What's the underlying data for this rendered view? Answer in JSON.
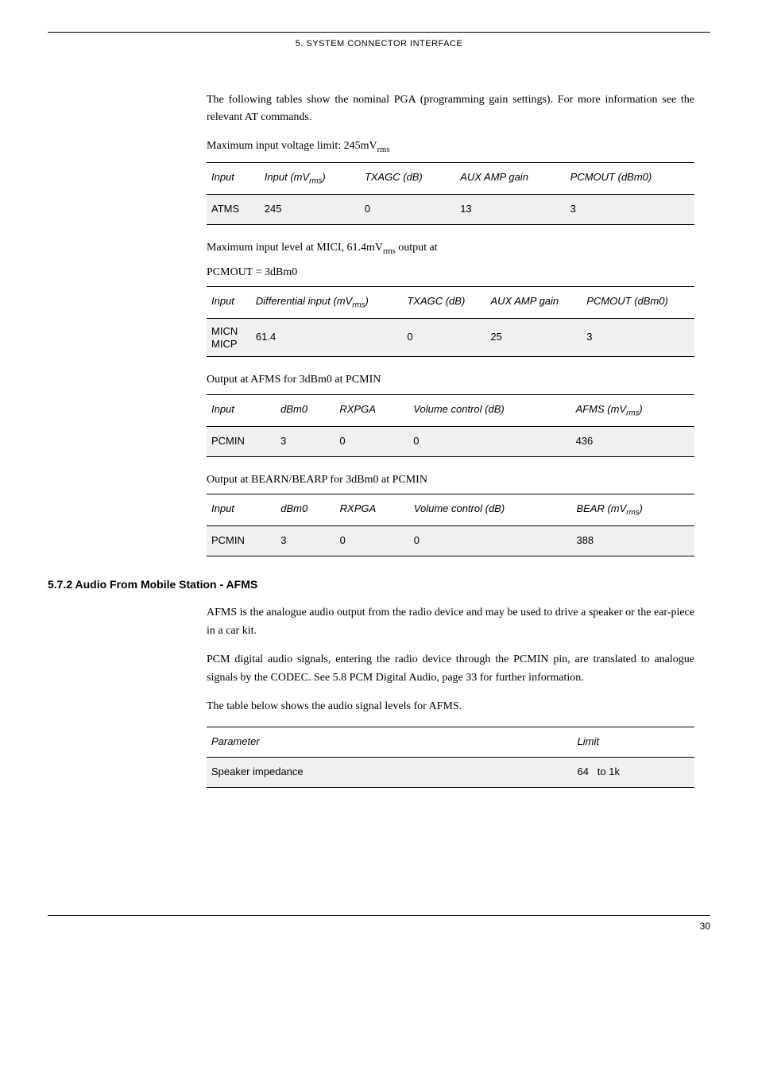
{
  "header": {
    "title": "5. SYSTEM CONNECTOR INTERFACE"
  },
  "intro": {
    "para1": "The following tables show the nominal PGA (programming gain settings). For more information see the relevant AT commands.",
    "caption1_prefix": "Maximum input voltage limit: 245mV",
    "caption1_sub": "rms"
  },
  "table1": {
    "h1": "Input",
    "h2_prefix": "Input (mV",
    "h2_sub": "rms",
    "h2_suffix": ")",
    "h3": "TXAGC (dB)",
    "h4": "AUX AMP gain",
    "h5": "PCMOUT (dBm0)",
    "r1c1": "ATMS",
    "r1c2": "245",
    "r1c3": "0",
    "r1c4": "13",
    "r1c5": "3"
  },
  "caption2": {
    "line1_prefix": "Maximum input level at MICI, 61.4mV",
    "line1_sub": "rms",
    "line1_suffix": " output at",
    "line2": "PCMOUT = 3dBm0"
  },
  "table2": {
    "h1": "Input",
    "h2_prefix": "Differential input (mV",
    "h2_sub": "rms",
    "h2_suffix": ")",
    "h3": "TXAGC (dB)",
    "h4": "AUX AMP gain",
    "h5": "PCMOUT (dBm0)",
    "r1c1": "MICN MICP",
    "r1c2": "61.4",
    "r1c3": "0",
    "r1c4": "25",
    "r1c5": "3"
  },
  "caption3": "Output at AFMS for 3dBm0 at PCMIN",
  "table3": {
    "h1": "Input",
    "h2": "dBm0",
    "h3": "RXPGA",
    "h4": "Volume control (dB)",
    "h5_prefix": "AFMS (mV",
    "h5_sub": "rms",
    "h5_suffix": ")",
    "r1c1": "PCMIN",
    "r1c2": "3",
    "r1c3": "0",
    "r1c4": "0",
    "r1c5": "436"
  },
  "caption4": "Output at BEARN/BEARP for 3dBm0 at PCMIN",
  "table4": {
    "h1": "Input",
    "h2": "dBm0",
    "h3": "RXPGA",
    "h4": "Volume control (dB)",
    "h5_prefix": "BEAR (mV",
    "h5_sub": "rms",
    "h5_suffix": ")",
    "r1c1": "PCMIN",
    "r1c2": "3",
    "r1c3": "0",
    "r1c4": "0",
    "r1c5": "388"
  },
  "section": {
    "heading": "5.7.2 Audio From Mobile Station - AFMS",
    "para1": "AFMS is the analogue audio output from the radio device and may be used to drive a speaker or the ear-piece in a car kit.",
    "para2": "PCM digital audio signals, entering the radio device through the PCMIN pin, are translated to analogue signals by the CODEC. See 5.8 PCM Digital Audio, page 33 for further information.",
    "para3": "The table below shows the audio signal levels for AFMS."
  },
  "table5": {
    "h1": "Parameter",
    "h2": "Limit",
    "r1c1": "Speaker impedance",
    "r1c2": "64   to 1k"
  },
  "footer": {
    "page_number": "30"
  }
}
